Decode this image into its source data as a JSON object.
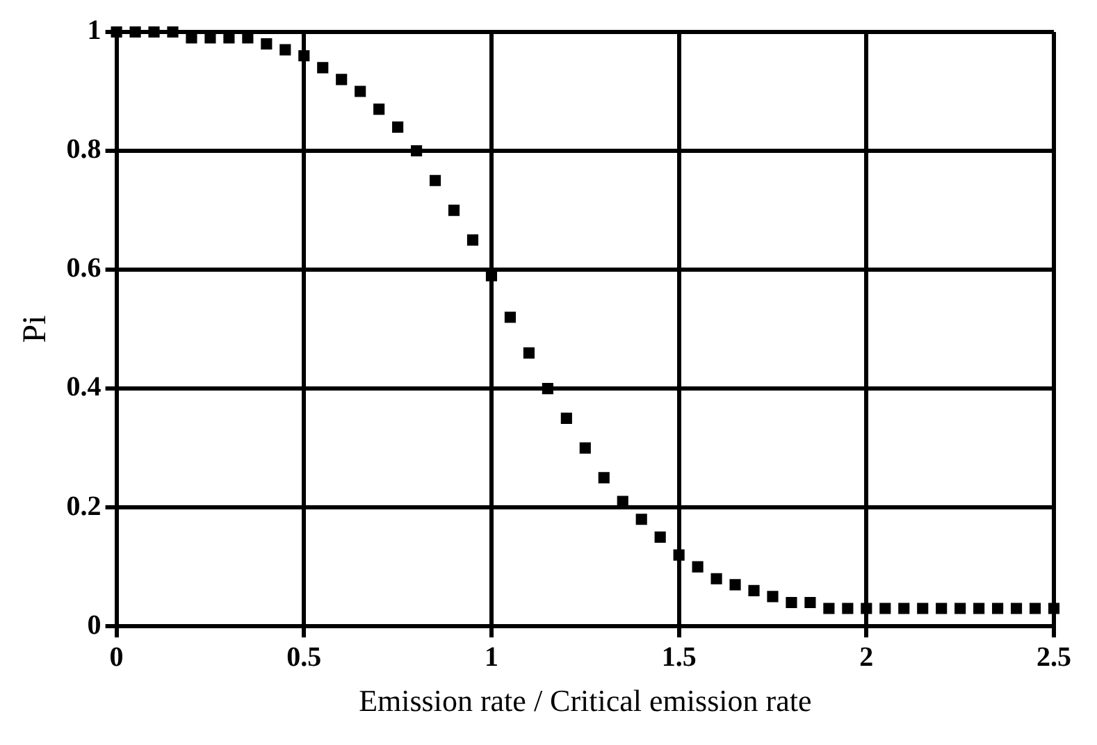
{
  "chart_data": {
    "type": "scatter",
    "xlabel": "Emission rate / Critical emission rate",
    "ylabel": "Pi",
    "x": [
      0,
      0.05,
      0.1,
      0.15,
      0.2,
      0.25,
      0.3,
      0.35,
      0.4,
      0.45,
      0.5,
      0.55,
      0.6,
      0.65,
      0.7,
      0.75,
      0.8,
      0.85,
      0.9,
      0.95,
      1,
      1.05,
      1.1,
      1.15,
      1.2,
      1.25,
      1.3,
      1.35,
      1.4,
      1.45,
      1.5,
      1.55,
      1.6,
      1.65,
      1.7,
      1.75,
      1.8,
      1.85,
      1.9,
      1.95,
      2,
      2.05,
      2.1,
      2.15,
      2.2,
      2.25,
      2.3,
      2.35,
      2.4,
      2.45,
      2.5
    ],
    "series": [
      {
        "color": "#000000",
        "values": [
          1,
          1,
          1,
          1,
          0.99,
          0.99,
          0.99,
          0.99,
          0.98,
          0.97,
          0.96,
          0.94,
          0.92,
          0.9,
          0.87,
          0.84,
          0.8,
          0.75,
          0.7,
          0.65,
          0.59,
          0.52,
          0.46,
          0.4,
          0.35,
          0.3,
          0.25,
          0.21,
          0.18,
          0.15,
          0.12,
          0.1,
          0.08,
          0.07,
          0.06,
          0.05,
          0.04,
          0.04,
          0.03,
          0.03,
          0.03,
          0.03,
          0.03,
          0.03,
          0.03,
          0.03,
          0.03,
          0.03,
          0.03,
          0.03,
          0.03
        ]
      }
    ],
    "xlim": [
      0,
      2.5
    ],
    "xticks": [
      0,
      0.5,
      1,
      1.5,
      2,
      2.5
    ],
    "ylim": [
      0,
      1
    ],
    "yticks": [
      0,
      0.2,
      0.4,
      0.6,
      0.8,
      1
    ],
    "grid": true,
    "legend": false,
    "marker": "square"
  }
}
